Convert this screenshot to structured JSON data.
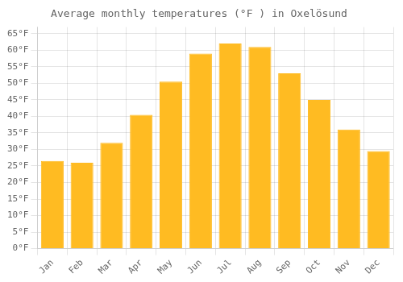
{
  "chart_data": {
    "type": "bar",
    "title": "Average monthly temperatures (°F ) in Oxelösund",
    "categories": [
      "Jan",
      "Feb",
      "Mar",
      "Apr",
      "May",
      "Jun",
      "Jul",
      "Aug",
      "Sep",
      "Oct",
      "Nov",
      "Dec"
    ],
    "values": [
      26.5,
      26.0,
      32.0,
      40.5,
      50.5,
      59.0,
      62.0,
      61.0,
      53.0,
      45.0,
      36.0,
      29.5
    ],
    "color": "#FFBB22",
    "ylim": [
      0,
      67
    ],
    "yticks": [
      {
        "value": 0,
        "label": "0°F"
      },
      {
        "value": 5,
        "label": "5°F"
      },
      {
        "value": 10,
        "label": "10°F"
      },
      {
        "value": 15,
        "label": "15°F"
      },
      {
        "value": 20,
        "label": "20°F"
      },
      {
        "value": 25,
        "label": "25°F"
      },
      {
        "value": 30,
        "label": "30°F"
      },
      {
        "value": 35,
        "label": "35°F"
      },
      {
        "value": 40,
        "label": "40°F"
      },
      {
        "value": 45,
        "label": "45°F"
      },
      {
        "value": 50,
        "label": "50°F"
      },
      {
        "value": 55,
        "label": "55°F"
      },
      {
        "value": 60,
        "label": "60°F"
      },
      {
        "value": 65,
        "label": "65°F"
      }
    ],
    "grid": true
  }
}
